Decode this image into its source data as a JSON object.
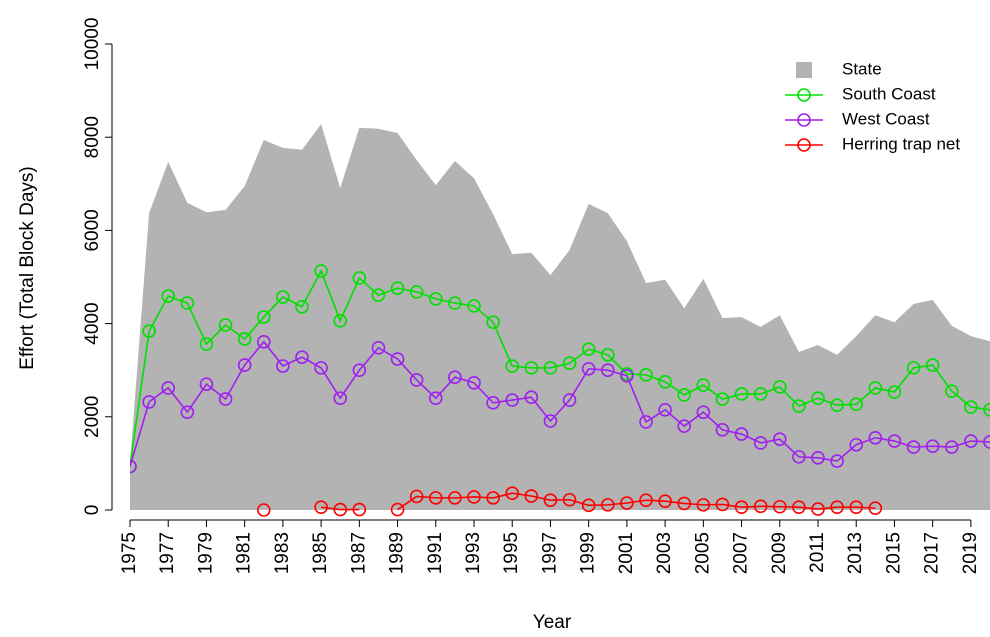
{
  "chart_data": {
    "type": "line",
    "xlabel": "Year",
    "ylabel": "Effort (Total Block Days)",
    "x": [
      1975,
      1976,
      1977,
      1978,
      1979,
      1980,
      1981,
      1982,
      1983,
      1984,
      1985,
      1986,
      1987,
      1988,
      1989,
      1990,
      1991,
      1992,
      1993,
      1994,
      1995,
      1996,
      1997,
      1998,
      1999,
      2000,
      2001,
      2002,
      2003,
      2004,
      2005,
      2006,
      2007,
      2008,
      2009,
      2010,
      2011,
      2012,
      2013,
      2014,
      2015,
      2016,
      2017,
      2018,
      2019,
      2020
    ],
    "series": [
      {
        "name": "State",
        "style": "area",
        "color": "#b3b3b3",
        "values": [
          1000,
          6370,
          7470,
          6590,
          6390,
          6440,
          6950,
          7940,
          7770,
          7730,
          8280,
          6910,
          8200,
          8180,
          8090,
          7510,
          6970,
          7490,
          7120,
          6350,
          5490,
          5520,
          5040,
          5580,
          6570,
          6370,
          5770,
          4870,
          4940,
          4330,
          4960,
          4120,
          4140,
          3930,
          4180,
          3390,
          3540,
          3330,
          3730,
          4180,
          4030,
          4420,
          4510,
          3950,
          3730,
          3620
        ]
      },
      {
        "name": "South Coast",
        "style": "line",
        "color": "#00e000",
        "values": [
          935,
          3840,
          4590,
          4440,
          3560,
          3970,
          3670,
          4140,
          4570,
          4360,
          5130,
          4060,
          4980,
          4610,
          4760,
          4680,
          4530,
          4440,
          4380,
          4030,
          3090,
          3050,
          3050,
          3150,
          3450,
          3330,
          2920,
          2900,
          2750,
          2470,
          2680,
          2380,
          2490,
          2490,
          2640,
          2230,
          2400,
          2250,
          2270,
          2620,
          2530,
          3050,
          3110,
          2550,
          2210,
          2150
        ]
      },
      {
        "name": "West Coast",
        "style": "line",
        "color": "#a020f0",
        "values": [
          935,
          2320,
          2620,
          2100,
          2700,
          2380,
          3110,
          3610,
          3090,
          3280,
          3050,
          2400,
          3000,
          3480,
          3240,
          2790,
          2400,
          2850,
          2730,
          2300,
          2360,
          2420,
          1910,
          2360,
          3030,
          3000,
          2880,
          1890,
          2150,
          1800,
          2100,
          1720,
          1630,
          1440,
          1520,
          1140,
          1120,
          1050,
          1400,
          1550,
          1480,
          1350,
          1370,
          1350,
          1480,
          1460
        ]
      },
      {
        "name": "Herring trap net",
        "style": "line",
        "color": "#ff0000",
        "values": [
          null,
          null,
          null,
          null,
          null,
          null,
          null,
          0,
          null,
          null,
          60,
          10,
          10,
          null,
          10,
          290,
          260,
          260,
          280,
          260,
          360,
          300,
          210,
          220,
          100,
          110,
          150,
          210,
          190,
          140,
          110,
          120,
          60,
          80,
          70,
          60,
          20,
          60,
          60,
          40,
          null,
          null,
          null,
          null,
          null,
          null
        ]
      }
    ],
    "xlim": [
      1975,
      2020
    ],
    "xticks": [
      1975,
      1977,
      1979,
      1981,
      1983,
      1985,
      1987,
      1989,
      1991,
      1993,
      1995,
      1997,
      1999,
      2001,
      2003,
      2005,
      2007,
      2009,
      2011,
      2013,
      2015,
      2017,
      2019
    ],
    "ylim": [
      0,
      10000
    ],
    "yticks": [
      0,
      2000,
      4000,
      6000,
      8000,
      10000
    ],
    "legend": "top-right"
  }
}
